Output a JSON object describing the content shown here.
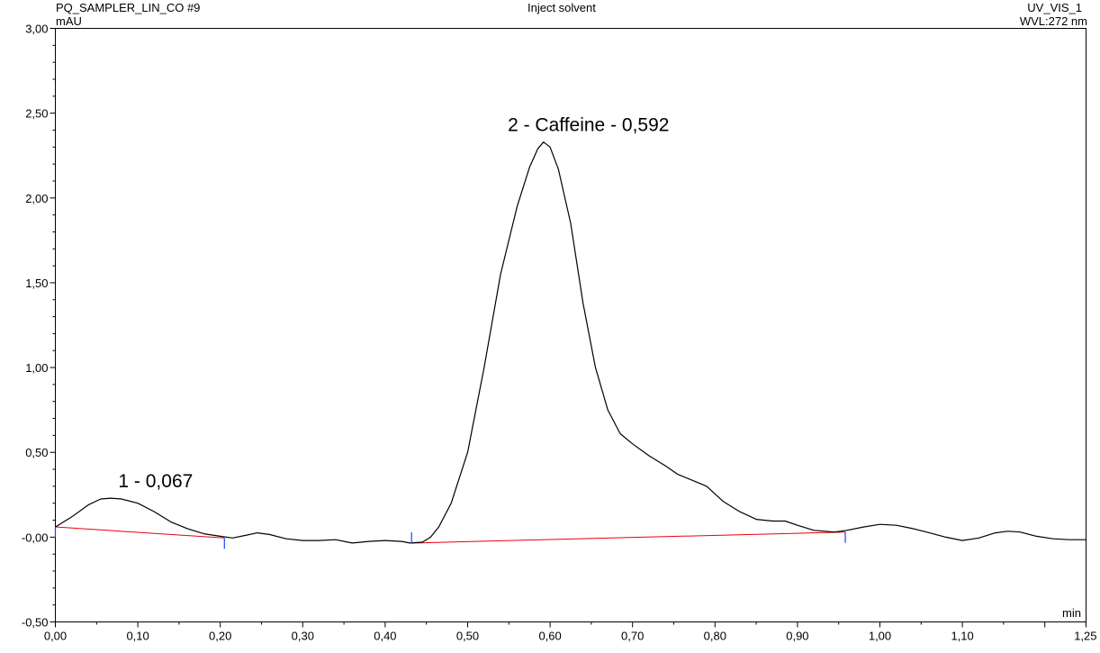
{
  "header": {
    "sample": "PQ_SAMPLER_LIN_CO #9",
    "title": "Inject solvent",
    "channel": "UV_VIS_1",
    "wavelength": "WVL:272 nm"
  },
  "chart_data": {
    "type": "line",
    "ylabel": "mAU",
    "xlabel": "min",
    "xlim": [
      0.0,
      1.25
    ],
    "ylim": [
      -0.5,
      3.0
    ],
    "grid": false,
    "x_ticks": [
      {
        "value": 0.0,
        "label": "0,00"
      },
      {
        "value": 0.1,
        "label": "0,10"
      },
      {
        "value": 0.2,
        "label": "0,20"
      },
      {
        "value": 0.3,
        "label": "0,30"
      },
      {
        "value": 0.4,
        "label": "0,40"
      },
      {
        "value": 0.5,
        "label": "0,50"
      },
      {
        "value": 0.6,
        "label": "0,60"
      },
      {
        "value": 0.7,
        "label": "0,70"
      },
      {
        "value": 0.8,
        "label": "0,80"
      },
      {
        "value": 0.9,
        "label": "0,90"
      },
      {
        "value": 1.0,
        "label": "1,00"
      },
      {
        "value": 1.1,
        "label": "1,10"
      },
      {
        "value": 1.25,
        "label": "1,25"
      }
    ],
    "y_ticks": [
      {
        "value": -0.5,
        "label": "-0,50"
      },
      {
        "value": 0.0,
        "label": "-0,00"
      },
      {
        "value": 0.5,
        "label": "0,50"
      },
      {
        "value": 1.0,
        "label": "1,00"
      },
      {
        "value": 1.5,
        "label": "1,50"
      },
      {
        "value": 2.0,
        "label": "2,00"
      },
      {
        "value": 2.5,
        "label": "2,50"
      },
      {
        "value": 3.0,
        "label": "3,00"
      }
    ],
    "series": [
      {
        "color": "#000000",
        "points": [
          [
            0.0,
            0.06
          ],
          [
            0.02,
            0.12
          ],
          [
            0.04,
            0.19
          ],
          [
            0.055,
            0.225
          ],
          [
            0.067,
            0.23
          ],
          [
            0.08,
            0.225
          ],
          [
            0.1,
            0.2
          ],
          [
            0.12,
            0.15
          ],
          [
            0.14,
            0.09
          ],
          [
            0.16,
            0.05
          ],
          [
            0.18,
            0.02
          ],
          [
            0.2,
            0.005
          ],
          [
            0.215,
            -0.005
          ],
          [
            0.23,
            0.01
          ],
          [
            0.245,
            0.025
          ],
          [
            0.26,
            0.015
          ],
          [
            0.28,
            -0.01
          ],
          [
            0.3,
            -0.02
          ],
          [
            0.32,
            -0.02
          ],
          [
            0.34,
            -0.015
          ],
          [
            0.36,
            -0.035
          ],
          [
            0.38,
            -0.025
          ],
          [
            0.4,
            -0.02
          ],
          [
            0.42,
            -0.025
          ],
          [
            0.43,
            -0.035
          ],
          [
            0.445,
            -0.03
          ],
          [
            0.455,
            0.0
          ],
          [
            0.465,
            0.06
          ],
          [
            0.48,
            0.2
          ],
          [
            0.5,
            0.5
          ],
          [
            0.52,
            1.0
          ],
          [
            0.54,
            1.55
          ],
          [
            0.56,
            1.95
          ],
          [
            0.575,
            2.18
          ],
          [
            0.585,
            2.29
          ],
          [
            0.592,
            2.33
          ],
          [
            0.6,
            2.3
          ],
          [
            0.61,
            2.17
          ],
          [
            0.625,
            1.85
          ],
          [
            0.64,
            1.38
          ],
          [
            0.655,
            1.0
          ],
          [
            0.67,
            0.75
          ],
          [
            0.685,
            0.61
          ],
          [
            0.7,
            0.55
          ],
          [
            0.72,
            0.48
          ],
          [
            0.74,
            0.42
          ],
          [
            0.755,
            0.37
          ],
          [
            0.775,
            0.33
          ],
          [
            0.79,
            0.3
          ],
          [
            0.81,
            0.21
          ],
          [
            0.83,
            0.15
          ],
          [
            0.85,
            0.105
          ],
          [
            0.87,
            0.095
          ],
          [
            0.885,
            0.095
          ],
          [
            0.9,
            0.07
          ],
          [
            0.92,
            0.04
          ],
          [
            0.945,
            0.03
          ],
          [
            0.96,
            0.04
          ],
          [
            0.98,
            0.06
          ],
          [
            1.0,
            0.075
          ],
          [
            1.02,
            0.07
          ],
          [
            1.04,
            0.05
          ],
          [
            1.06,
            0.025
          ],
          [
            1.08,
            0.0
          ],
          [
            1.1,
            -0.02
          ],
          [
            1.12,
            -0.005
          ],
          [
            1.14,
            0.025
          ],
          [
            1.155,
            0.035
          ],
          [
            1.17,
            0.03
          ],
          [
            1.19,
            0.005
          ],
          [
            1.21,
            -0.01
          ],
          [
            1.23,
            -0.015
          ],
          [
            1.25,
            -0.015
          ]
        ]
      }
    ],
    "baselines": [
      {
        "color": "#e8000b",
        "from": [
          0.0,
          0.06
        ],
        "to": [
          0.205,
          -0.005
        ]
      },
      {
        "color": "#e8000b",
        "from": [
          0.432,
          -0.035
        ],
        "to": [
          0.958,
          0.03
        ]
      }
    ],
    "delimiters": [
      {
        "x": 0.0,
        "y": 0.06,
        "dir": "down"
      },
      {
        "x": 0.205,
        "y": -0.005,
        "dir": "down"
      },
      {
        "x": 0.432,
        "y": -0.035,
        "dir": "up"
      },
      {
        "x": 0.958,
        "y": 0.03,
        "dir": "down"
      }
    ],
    "annotations": [
      {
        "x": 0.067,
        "y": 0.23,
        "text": "1 - 0,067"
      },
      {
        "x": 0.592,
        "y": 2.33,
        "text": "2 - Caffeine - 0,592"
      }
    ]
  }
}
